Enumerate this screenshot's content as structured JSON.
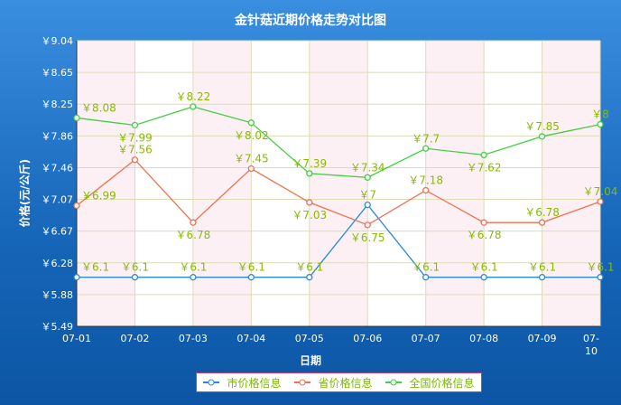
{
  "chart_data": {
    "type": "line",
    "title": "金针菇近期价格走势对比图",
    "xlabel": "日期",
    "ylabel": "价格(元/公斤)",
    "categories": [
      "07-01",
      "07-02",
      "07-03",
      "07-04",
      "07-05",
      "07-06",
      "07-07",
      "07-08",
      "07-09",
      "07-10"
    ],
    "yticks": [
      "￥9.04",
      "￥8.65",
      "￥8.25",
      "￥7.86",
      "￥7.46",
      "￥7.07",
      "￥6.67",
      "￥6.28",
      "￥5.88",
      "￥5.49"
    ],
    "ylim": [
      5.49,
      9.04
    ],
    "grid": true,
    "legend": "bottom",
    "value_prefix": "￥",
    "series": [
      {
        "name": "市价格信息",
        "color": "#2a8ad8",
        "values": [
          6.1,
          6.1,
          6.1,
          6.1,
          6.1,
          7,
          6.1,
          6.1,
          6.1,
          6.1
        ]
      },
      {
        "name": "省价格信息",
        "color": "#f07050",
        "values": [
          6.99,
          7.56,
          6.78,
          7.45,
          7.03,
          6.75,
          7.18,
          6.78,
          6.78,
          7.04
        ]
      },
      {
        "name": "全国价格信息",
        "color": "#40d040",
        "values": [
          8.08,
          7.99,
          8.22,
          8.02,
          7.39,
          7.34,
          7.7,
          7.62,
          7.85,
          8
        ]
      }
    ],
    "label_color": "#88bb00"
  }
}
